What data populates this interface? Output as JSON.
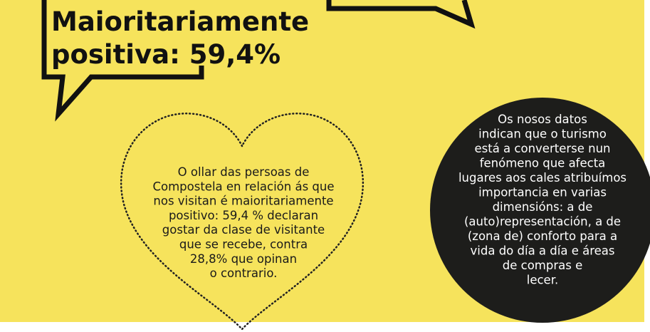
{
  "heading": {
    "lines": [
      "Maioritariamente",
      "positiva: 59,4%"
    ]
  },
  "heart": {
    "lines": [
      "O ollar das persoas de",
      "Compostela en relación ás que",
      "nos visitan é maioritariamente",
      "positivo: 59,4 % declaran",
      "gostar da clase de visitante",
      "que se recebe, contra",
      "28,8% que opinan",
      "o contrario."
    ]
  },
  "circle": {
    "lines": [
      "Os nosos datos",
      "indican que o turismo",
      "está a converterse nun",
      "fenómeno que afecta",
      "lugares aos cales atribuímos",
      "importancia en varias",
      "dimensións: a de",
      "(auto)representación, a de",
      "(zona de) conforto para a",
      "vida do día a día e áreas",
      "de compras e",
      "lecer."
    ]
  }
}
